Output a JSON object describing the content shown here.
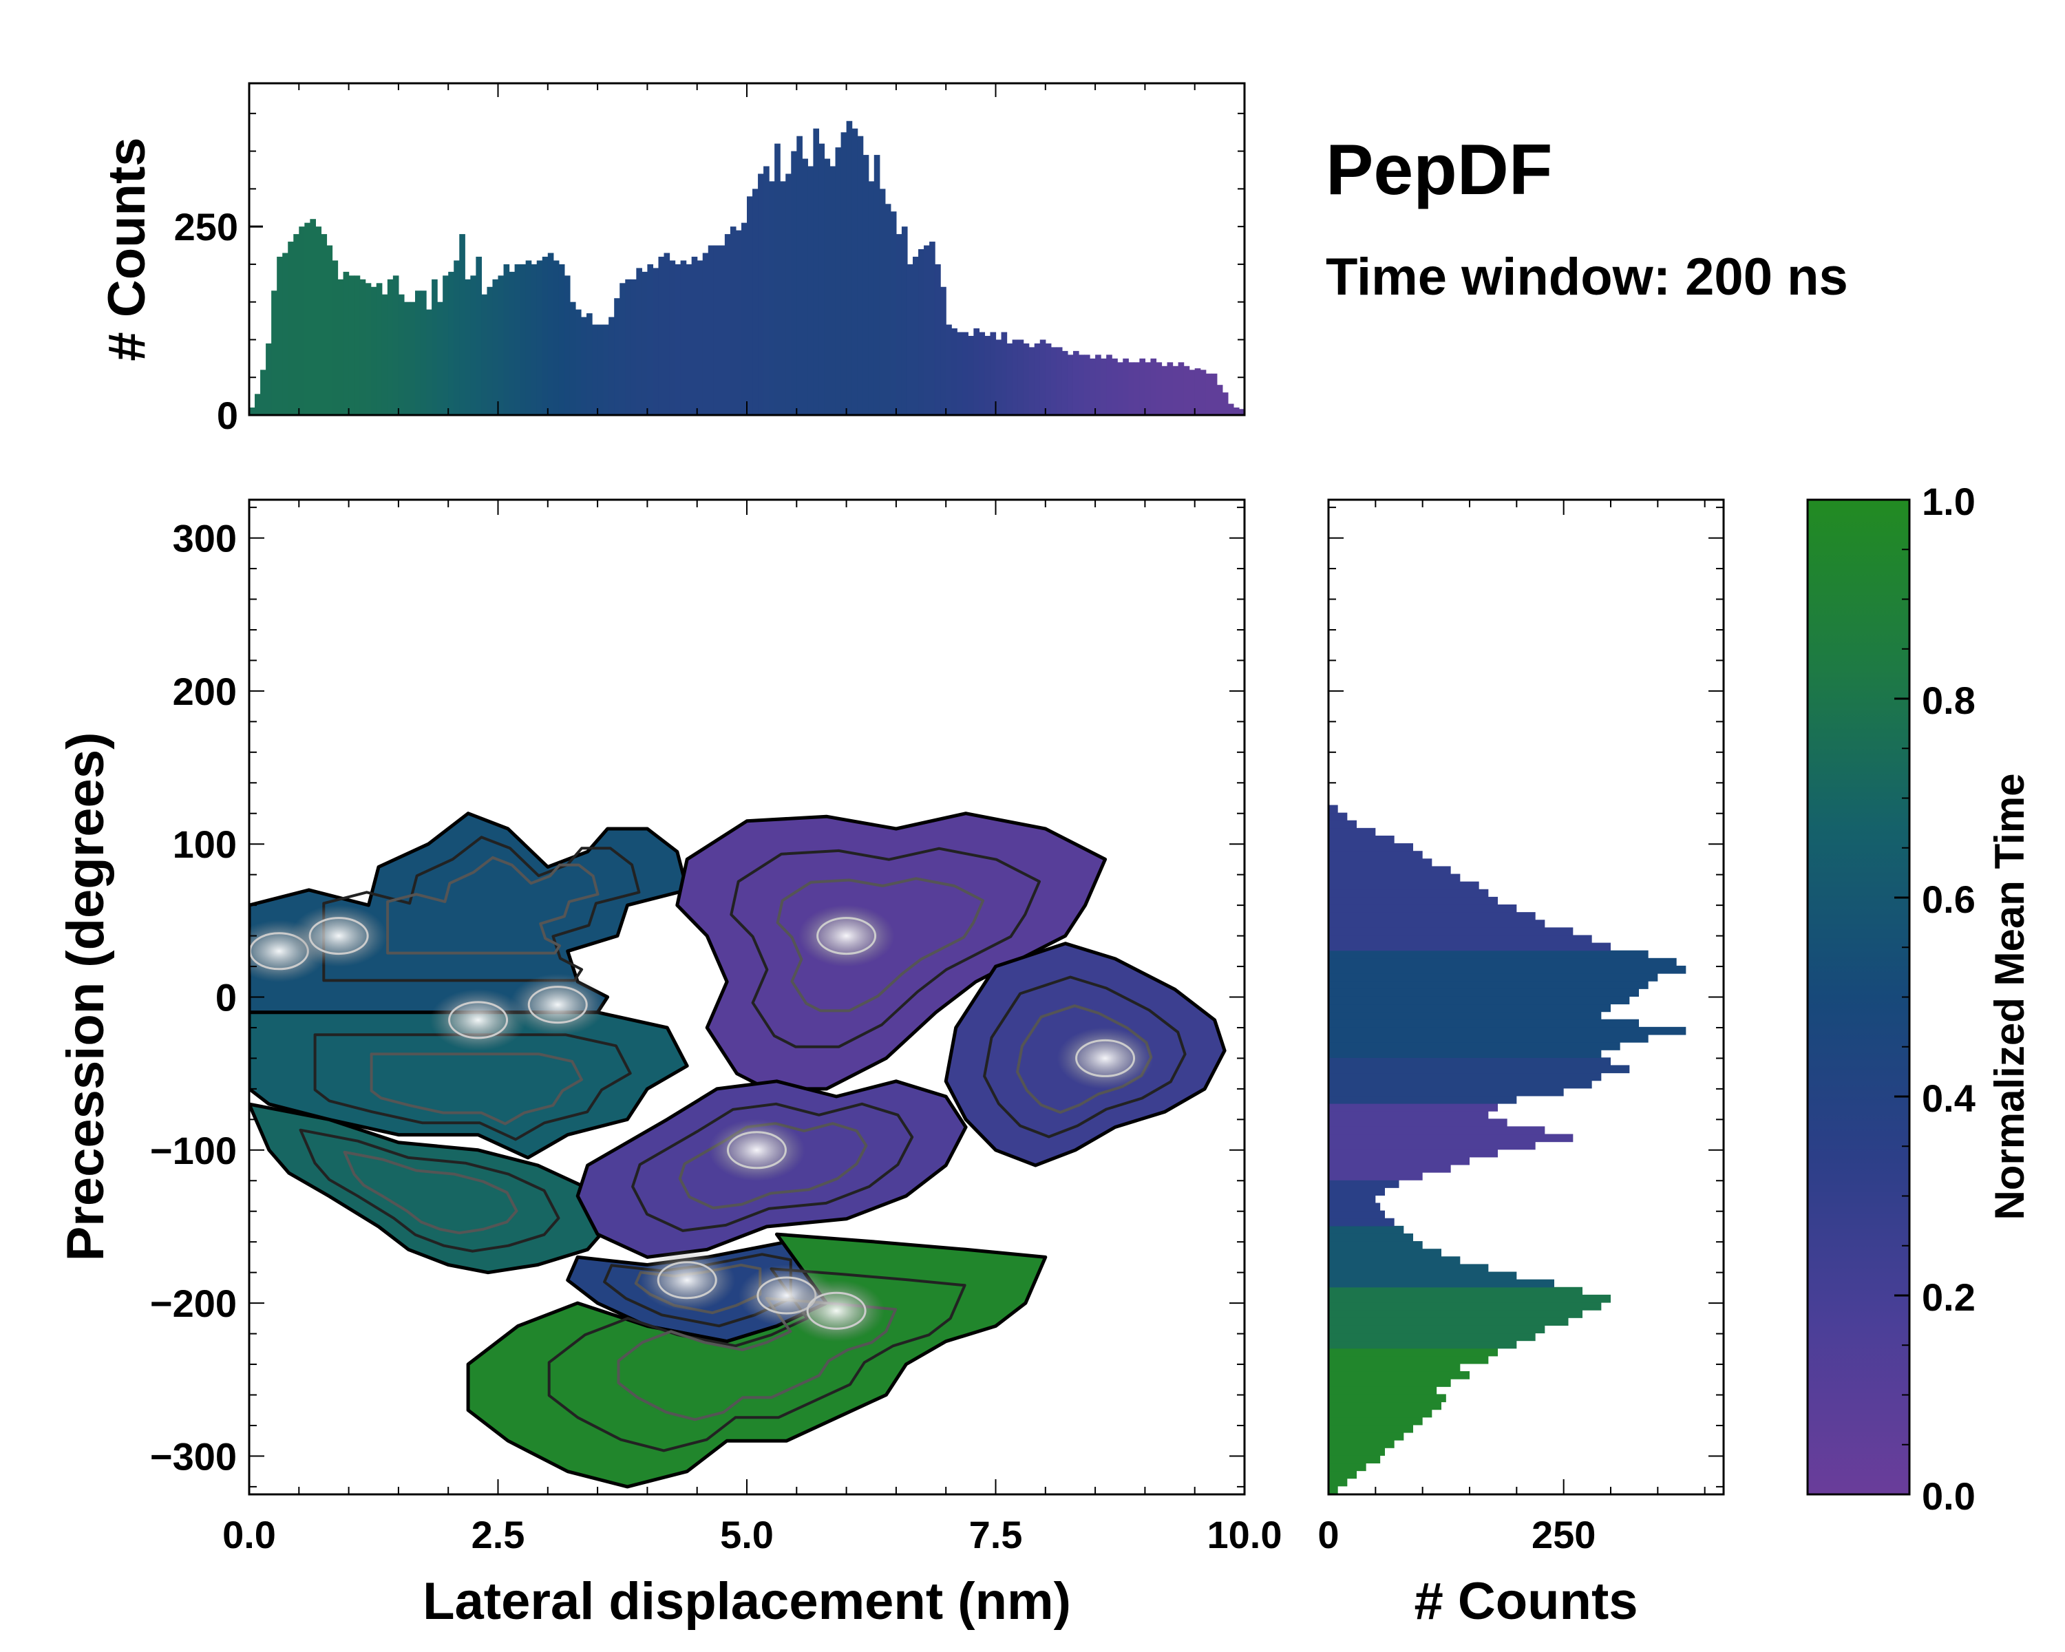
{
  "title": "PepDF",
  "subtitle": "Time window: 200 ns",
  "chart_data": [
    {
      "type": "bar",
      "role": "top marginal histogram",
      "ylabel": "# Counts",
      "xlim": [
        0,
        10
      ],
      "ylim": [
        0,
        440
      ],
      "yticks": [
        "0",
        "250"
      ],
      "bin_width": 0.05,
      "values": [
        10,
        28,
        60,
        95,
        165,
        210,
        215,
        230,
        240,
        250,
        255,
        260,
        250,
        240,
        225,
        205,
        180,
        190,
        185,
        185,
        180,
        175,
        170,
        175,
        160,
        180,
        185,
        160,
        150,
        150,
        165,
        165,
        140,
        180,
        150,
        185,
        190,
        205,
        240,
        180,
        185,
        210,
        160,
        170,
        180,
        185,
        200,
        190,
        200,
        200,
        205,
        200,
        205,
        210,
        215,
        205,
        200,
        185,
        150,
        140,
        130,
        135,
        120,
        120,
        120,
        130,
        155,
        175,
        180,
        180,
        195,
        190,
        200,
        195,
        210,
        215,
        205,
        200,
        205,
        200,
        210,
        205,
        215,
        225,
        225,
        225,
        240,
        250,
        245,
        255,
        290,
        300,
        320,
        330,
        310,
        360,
        310,
        320,
        350,
        370,
        340,
        330,
        380,
        360,
        340,
        330,
        355,
        375,
        390,
        380,
        370,
        345,
        310,
        345,
        300,
        280,
        270,
        240,
        250,
        200,
        210,
        220,
        225,
        230,
        200,
        170,
        120,
        115,
        110,
        110,
        105,
        115,
        110,
        105,
        110,
        100,
        110,
        95,
        100,
        100,
        95,
        90,
        95,
        100,
        95,
        90,
        90,
        85,
        80,
        85,
        80,
        80,
        75,
        80,
        75,
        80,
        75,
        70,
        75,
        70,
        70,
        75,
        70,
        75,
        70,
        65,
        70,
        65,
        70,
        65,
        60,
        62,
        60,
        55,
        55,
        40,
        30,
        15,
        10,
        8
      ]
    },
    {
      "type": "heatmap",
      "role": "2D density (mean time) with contours",
      "xlabel": "Lateral displacement (nm)",
      "ylabel": "Precession (degrees)",
      "xlim": [
        0,
        10
      ],
      "ylim": [
        -325,
        325
      ],
      "xticks": [
        "0.0",
        "2.5",
        "5.0",
        "7.5",
        "10.0"
      ],
      "yticks": [
        "300",
        "200",
        "100",
        "0",
        "−100",
        "−200",
        "−300"
      ],
      "regions": [
        {
          "name": "upper-left cluster",
          "t": 0.55,
          "points": [
            [
              0,
              60
            ],
            [
              0.6,
              70
            ],
            [
              1.2,
              60
            ],
            [
              1.3,
              85
            ],
            [
              1.8,
              100
            ],
            [
              2.2,
              120
            ],
            [
              2.6,
              110
            ],
            [
              3.0,
              85
            ],
            [
              3.4,
              95
            ],
            [
              3.6,
              110
            ],
            [
              4.0,
              110
            ],
            [
              4.3,
              95
            ],
            [
              4.4,
              70
            ],
            [
              3.8,
              60
            ],
            [
              3.7,
              40
            ],
            [
              3.2,
              30
            ],
            [
              3.3,
              10
            ],
            [
              3.6,
              0
            ],
            [
              3.5,
              -10
            ],
            [
              0,
              -10
            ]
          ]
        },
        {
          "name": "left-middle band",
          "t": 0.65,
          "points": [
            [
              0,
              -10
            ],
            [
              3.5,
              -10
            ],
            [
              4.2,
              -20
            ],
            [
              4.4,
              -45
            ],
            [
              4.0,
              -60
            ],
            [
              3.8,
              -80
            ],
            [
              3.2,
              -90
            ],
            [
              2.8,
              -105
            ],
            [
              2.3,
              -90
            ],
            [
              1.5,
              -90
            ],
            [
              0.8,
              -80
            ],
            [
              0.2,
              -70
            ],
            [
              0,
              -60
            ]
          ]
        },
        {
          "name": "left-lower band",
          "t": 0.7,
          "points": [
            [
              0,
              -70
            ],
            [
              0.8,
              -80
            ],
            [
              1.5,
              -95
            ],
            [
              2.3,
              -100
            ],
            [
              2.9,
              -110
            ],
            [
              3.4,
              -125
            ],
            [
              3.6,
              -150
            ],
            [
              3.4,
              -165
            ],
            [
              2.9,
              -175
            ],
            [
              2.4,
              -180
            ],
            [
              2.0,
              -175
            ],
            [
              1.6,
              -165
            ],
            [
              1.3,
              -150
            ],
            [
              0.8,
              -130
            ],
            [
              0.4,
              -115
            ],
            [
              0.2,
              -100
            ]
          ]
        },
        {
          "name": "upper-right purple cluster",
          "t": 0.1,
          "points": [
            [
              4.4,
              90
            ],
            [
              5.0,
              115
            ],
            [
              5.8,
              118
            ],
            [
              6.5,
              110
            ],
            [
              7.2,
              120
            ],
            [
              8.0,
              110
            ],
            [
              8.6,
              90
            ],
            [
              8.4,
              60
            ],
            [
              8.2,
              40
            ],
            [
              7.9,
              30
            ],
            [
              7.3,
              10
            ],
            [
              6.9,
              -10
            ],
            [
              6.4,
              -40
            ],
            [
              5.8,
              -60
            ],
            [
              5.2,
              -60
            ],
            [
              4.9,
              -50
            ],
            [
              4.6,
              -20
            ],
            [
              4.8,
              10
            ],
            [
              4.6,
              40
            ],
            [
              4.3,
              60
            ]
          ]
        },
        {
          "name": "right blue cluster",
          "t": 0.25,
          "points": [
            [
              7.5,
              20
            ],
            [
              8.2,
              35
            ],
            [
              8.7,
              25
            ],
            [
              9.3,
              5
            ],
            [
              9.7,
              -15
            ],
            [
              9.8,
              -35
            ],
            [
              9.6,
              -60
            ],
            [
              9.2,
              -75
            ],
            [
              8.7,
              -85
            ],
            [
              8.3,
              -100
            ],
            [
              7.9,
              -110
            ],
            [
              7.5,
              -100
            ],
            [
              7.2,
              -80
            ],
            [
              7.0,
              -55
            ],
            [
              7.1,
              -20
            ]
          ]
        },
        {
          "name": "center purple cluster",
          "t": 0.15,
          "points": [
            [
              3.4,
              -110
            ],
            [
              4.2,
              -80
            ],
            [
              4.7,
              -60
            ],
            [
              5.3,
              -55
            ],
            [
              5.9,
              -65
            ],
            [
              6.5,
              -55
            ],
            [
              7.0,
              -65
            ],
            [
              7.2,
              -85
            ],
            [
              7.0,
              -110
            ],
            [
              6.6,
              -130
            ],
            [
              6.0,
              -145
            ],
            [
              5.2,
              -150
            ],
            [
              4.6,
              -165
            ],
            [
              4.0,
              -170
            ],
            [
              3.5,
              -155
            ],
            [
              3.3,
              -130
            ]
          ]
        },
        {
          "name": "lower blue-purple cluster",
          "t": 0.4,
          "points": [
            [
              3.3,
              -170
            ],
            [
              4.0,
              -175
            ],
            [
              4.6,
              -170
            ],
            [
              5.4,
              -160
            ],
            [
              5.8,
              -165
            ],
            [
              5.8,
              -200
            ],
            [
              5.3,
              -215
            ],
            [
              4.8,
              -225
            ],
            [
              4.0,
              -215
            ],
            [
              3.5,
              -200
            ],
            [
              3.2,
              -185
            ]
          ]
        },
        {
          "name": "lower green cluster",
          "t": 0.95,
          "points": [
            [
              5.3,
              -155
            ],
            [
              6.3,
              -160
            ],
            [
              7.2,
              -165
            ],
            [
              8.0,
              -170
            ],
            [
              7.8,
              -200
            ],
            [
              7.5,
              -215
            ],
            [
              7.0,
              -225
            ],
            [
              6.6,
              -240
            ],
            [
              6.4,
              -260
            ],
            [
              5.9,
              -275
            ],
            [
              5.4,
              -290
            ],
            [
              4.8,
              -290
            ],
            [
              4.4,
              -310
            ],
            [
              3.8,
              -320
            ],
            [
              3.2,
              -310
            ],
            [
              2.6,
              -290
            ],
            [
              2.2,
              -270
            ],
            [
              2.2,
              -240
            ],
            [
              2.7,
              -215
            ],
            [
              3.3,
              -200
            ],
            [
              4.0,
              -215
            ],
            [
              4.8,
              -225
            ],
            [
              5.3,
              -215
            ],
            [
              5.8,
              -200
            ]
          ]
        }
      ],
      "hotspots": [
        [
          0.3,
          30
        ],
        [
          0.9,
          40
        ],
        [
          2.3,
          -15
        ],
        [
          3.1,
          -5
        ],
        [
          5.1,
          -100
        ],
        [
          4.4,
          -185
        ],
        [
          5.4,
          -195
        ],
        [
          5.9,
          -205
        ],
        [
          6.0,
          40
        ],
        [
          8.6,
          -40
        ]
      ]
    },
    {
      "type": "bar",
      "role": "right marginal histogram (horizontal)",
      "xlabel": "# Counts",
      "xlim": [
        0,
        420
      ],
      "ylim": [
        -325,
        325
      ],
      "xticks": [
        "0",
        "250"
      ],
      "bin_width": 5,
      "y": [
        -322,
        -317,
        -312,
        -307,
        -302,
        -297,
        -292,
        -287,
        -282,
        -277,
        -272,
        -267,
        -262,
        -257,
        -252,
        -247,
        -242,
        -237,
        -232,
        -227,
        -222,
        -217,
        -212,
        -207,
        -202,
        -197,
        -192,
        -187,
        -182,
        -177,
        -172,
        -167,
        -162,
        -157,
        -152,
        -147,
        -142,
        -137,
        -132,
        -127,
        -122,
        -117,
        -112,
        -107,
        -102,
        -97,
        -92,
        -87,
        -82,
        -77,
        -72,
        -67,
        -62,
        -57,
        -52,
        -47,
        -42,
        -37,
        -32,
        -27,
        -22,
        -17,
        -12,
        -7,
        -2,
        3,
        8,
        13,
        18,
        23,
        28,
        33,
        38,
        43,
        48,
        53,
        58,
        63,
        68,
        73,
        78,
        83,
        88,
        93,
        98,
        103,
        108,
        113,
        118,
        123
      ],
      "values": [
        10,
        20,
        30,
        40,
        55,
        60,
        70,
        80,
        90,
        100,
        110,
        120,
        125,
        115,
        130,
        150,
        140,
        170,
        180,
        200,
        220,
        230,
        255,
        270,
        290,
        300,
        270,
        240,
        200,
        170,
        140,
        120,
        100,
        90,
        80,
        70,
        60,
        55,
        50,
        60,
        75,
        100,
        130,
        150,
        180,
        220,
        260,
        230,
        190,
        170,
        180,
        200,
        250,
        280,
        290,
        320,
        300,
        290,
        310,
        340,
        380,
        330,
        290,
        300,
        320,
        330,
        340,
        350,
        380,
        370,
        340,
        300,
        280,
        260,
        230,
        220,
        200,
        180,
        170,
        160,
        140,
        130,
        110,
        100,
        90,
        70,
        50,
        30,
        20,
        10
      ]
    }
  ],
  "colorbar": {
    "label": "Normalized Mean Time",
    "ticks": [
      "0.0",
      "0.2",
      "0.4",
      "0.6",
      "0.8",
      "1.0"
    ],
    "colors": [
      "#6a3d9a",
      "#4b3f98",
      "#2c3f88",
      "#17497a",
      "#15616a",
      "#1e7a44",
      "#228b22"
    ]
  }
}
